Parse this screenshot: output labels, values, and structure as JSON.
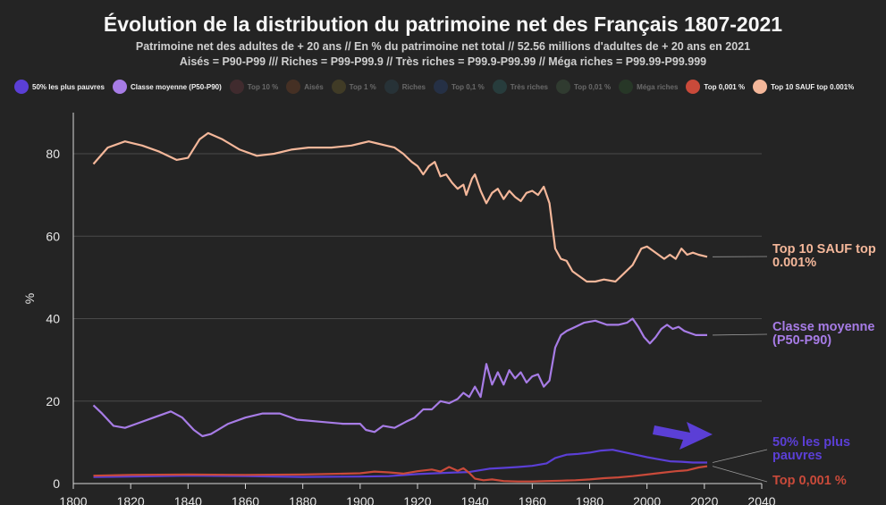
{
  "title": "Évolution de la distribution du patrimoine net des Français 1807-2021",
  "subtitle_1": "Patrimoine net des adultes de + 20 ans // En % du patrimoine net total // 52.56 millions d'adultes de + 20 ans en 2021",
  "subtitle_2": "Aisés = P90-P99 /// Riches = P99-P99.9 // Très riches = P99.9-P99.99 // Méga riches = P99.99-P99.999",
  "legend": [
    {
      "label": "50% les plus pauvres",
      "color": "#5b3fd6",
      "active": true
    },
    {
      "label": "Classe moyenne (P50-P90)",
      "color": "#a77ce6",
      "active": true
    },
    {
      "label": "Top 10 %",
      "color": "#7a3b45",
      "active": false
    },
    {
      "label": "Aisés",
      "color": "#8a4a25",
      "active": false
    },
    {
      "label": "Top 1 %",
      "color": "#7a6a2a",
      "active": false
    },
    {
      "label": "Riches",
      "color": "#2f4f5f",
      "active": false
    },
    {
      "label": "Top 0,1 %",
      "color": "#2a4a8a",
      "active": false
    },
    {
      "label": "Très riches",
      "color": "#2f6f6f",
      "active": false
    },
    {
      "label": "Top 0,01 %",
      "color": "#4a6a4a",
      "active": false
    },
    {
      "label": "Méga riches",
      "color": "#2f5f2f",
      "active": false
    },
    {
      "label": "Top 0,001 %",
      "color": "#c94a3a",
      "active": true
    },
    {
      "label": "Top 10 SAUF top 0.001%",
      "color": "#f4b79a",
      "active": true
    }
  ],
  "chart_data": {
    "type": "line",
    "ylabel": "%",
    "xlim": [
      1800,
      2040
    ],
    "ylim": [
      0,
      90
    ],
    "x_ticks": [
      "1800",
      "1820",
      "1840",
      "1860",
      "1880",
      "1900",
      "1920",
      "1940",
      "1960",
      "1980",
      "2000",
      "2020",
      "2040"
    ],
    "y_ticks": [
      "0",
      "20",
      "40",
      "60",
      "80"
    ],
    "grid": "horizontal",
    "series": [
      {
        "name": "Top 10 SAUF top 0.001%",
        "color": "#f4b79a",
        "end_label": [
          "Top 10 SAUF top",
          "0.001%"
        ],
        "points": [
          [
            1807,
            77.5
          ],
          [
            1812,
            81.5
          ],
          [
            1818,
            83
          ],
          [
            1824,
            82
          ],
          [
            1830,
            80.5
          ],
          [
            1836,
            78.5
          ],
          [
            1840,
            79
          ],
          [
            1844,
            83.5
          ],
          [
            1847,
            85
          ],
          [
            1852,
            83.5
          ],
          [
            1858,
            81
          ],
          [
            1864,
            79.5
          ],
          [
            1870,
            80
          ],
          [
            1876,
            81
          ],
          [
            1882,
            81.5
          ],
          [
            1890,
            81.5
          ],
          [
            1897,
            82
          ],
          [
            1900,
            82.5
          ],
          [
            1903,
            83
          ],
          [
            1906,
            82.5
          ],
          [
            1909,
            82
          ],
          [
            1912,
            81.5
          ],
          [
            1915,
            80
          ],
          [
            1918,
            78
          ],
          [
            1920,
            77
          ],
          [
            1922,
            75
          ],
          [
            1924,
            77
          ],
          [
            1926,
            78
          ],
          [
            1928,
            74.5
          ],
          [
            1930,
            75
          ],
          [
            1932,
            73
          ],
          [
            1934,
            71.5
          ],
          [
            1936,
            72.5
          ],
          [
            1937,
            70
          ],
          [
            1939,
            74
          ],
          [
            1940,
            75
          ],
          [
            1942,
            71
          ],
          [
            1944,
            68
          ],
          [
            1946,
            70.5
          ],
          [
            1948,
            71.5
          ],
          [
            1950,
            69
          ],
          [
            1952,
            71
          ],
          [
            1954,
            69.5
          ],
          [
            1956,
            68.5
          ],
          [
            1958,
            70.5
          ],
          [
            1960,
            71
          ],
          [
            1962,
            70
          ],
          [
            1964,
            72
          ],
          [
            1966,
            68
          ],
          [
            1968,
            57
          ],
          [
            1970,
            54.5
          ],
          [
            1972,
            54
          ],
          [
            1974,
            51.5
          ],
          [
            1976,
            50.5
          ],
          [
            1979,
            49
          ],
          [
            1982,
            49
          ],
          [
            1985,
            49.5
          ],
          [
            1989,
            49
          ],
          [
            1992,
            51
          ],
          [
            1995,
            53
          ],
          [
            1998,
            57
          ],
          [
            2000,
            57.5
          ],
          [
            2002,
            56.5
          ],
          [
            2004,
            55.5
          ],
          [
            2006,
            54.5
          ],
          [
            2008,
            55.5
          ],
          [
            2010,
            54.5
          ],
          [
            2012,
            57
          ],
          [
            2014,
            55.5
          ],
          [
            2016,
            56
          ],
          [
            2018,
            55.5
          ],
          [
            2021,
            55
          ]
        ]
      },
      {
        "name": "Classe moyenne (P50-P90)",
        "color": "#a77ce6",
        "end_label": [
          "Classe moyenne",
          "(P50-P90)"
        ],
        "points": [
          [
            1807,
            19
          ],
          [
            1810,
            17
          ],
          [
            1814,
            14
          ],
          [
            1818,
            13.5
          ],
          [
            1822,
            14.5
          ],
          [
            1828,
            16
          ],
          [
            1834,
            17.5
          ],
          [
            1838,
            16
          ],
          [
            1842,
            13
          ],
          [
            1845,
            11.5
          ],
          [
            1848,
            12
          ],
          [
            1854,
            14.5
          ],
          [
            1860,
            16
          ],
          [
            1866,
            17
          ],
          [
            1872,
            17
          ],
          [
            1878,
            15.5
          ],
          [
            1886,
            15
          ],
          [
            1894,
            14.5
          ],
          [
            1900,
            14.5
          ],
          [
            1902,
            13
          ],
          [
            1905,
            12.5
          ],
          [
            1908,
            14
          ],
          [
            1912,
            13.5
          ],
          [
            1916,
            15
          ],
          [
            1919,
            16
          ],
          [
            1922,
            18
          ],
          [
            1925,
            18
          ],
          [
            1928,
            20
          ],
          [
            1931,
            19.5
          ],
          [
            1934,
            20.5
          ],
          [
            1936,
            22
          ],
          [
            1938,
            21
          ],
          [
            1940,
            23.5
          ],
          [
            1942,
            21
          ],
          [
            1944,
            29
          ],
          [
            1946,
            24
          ],
          [
            1948,
            27
          ],
          [
            1950,
            24
          ],
          [
            1952,
            27.5
          ],
          [
            1954,
            25.5
          ],
          [
            1956,
            27
          ],
          [
            1958,
            24.5
          ],
          [
            1960,
            26
          ],
          [
            1962,
            26.5
          ],
          [
            1964,
            23.5
          ],
          [
            1966,
            25
          ],
          [
            1968,
            33
          ],
          [
            1970,
            36
          ],
          [
            1972,
            37
          ],
          [
            1975,
            38
          ],
          [
            1978,
            39
          ],
          [
            1982,
            39.5
          ],
          [
            1986,
            38.5
          ],
          [
            1990,
            38.5
          ],
          [
            1993,
            39
          ],
          [
            1995,
            40
          ],
          [
            1997,
            38
          ],
          [
            1999,
            35.5
          ],
          [
            2001,
            34
          ],
          [
            2003,
            35.5
          ],
          [
            2005,
            37.5
          ],
          [
            2007,
            38.5
          ],
          [
            2009,
            37.5
          ],
          [
            2011,
            38
          ],
          [
            2013,
            37
          ],
          [
            2015,
            36.5
          ],
          [
            2017,
            36
          ],
          [
            2019,
            36
          ],
          [
            2021,
            36
          ]
        ]
      },
      {
        "name": "50% les plus pauvres",
        "color": "#5b3fd6",
        "end_label": [
          "50% les plus",
          "pauvres"
        ],
        "points": [
          [
            1807,
            1.6
          ],
          [
            1820,
            1.7
          ],
          [
            1840,
            1.9
          ],
          [
            1860,
            1.8
          ],
          [
            1880,
            1.6
          ],
          [
            1900,
            1.7
          ],
          [
            1910,
            1.8
          ],
          [
            1920,
            2.3
          ],
          [
            1930,
            2.6
          ],
          [
            1938,
            2.8
          ],
          [
            1945,
            3.6
          ],
          [
            1950,
            3.8
          ],
          [
            1955,
            4.0
          ],
          [
            1960,
            4.3
          ],
          [
            1965,
            4.9
          ],
          [
            1968,
            6.2
          ],
          [
            1972,
            7.0
          ],
          [
            1976,
            7.2
          ],
          [
            1980,
            7.5
          ],
          [
            1984,
            8.0
          ],
          [
            1988,
            8.2
          ],
          [
            1992,
            7.6
          ],
          [
            1996,
            7.0
          ],
          [
            2000,
            6.4
          ],
          [
            2004,
            5.9
          ],
          [
            2008,
            5.4
          ],
          [
            2012,
            5.3
          ],
          [
            2016,
            5.1
          ],
          [
            2021,
            5.1
          ]
        ]
      },
      {
        "name": "Top 0,001 %",
        "color": "#c94a3a",
        "end_label": [
          "Top 0,001 %"
        ],
        "points": [
          [
            1807,
            1.9
          ],
          [
            1820,
            2.1
          ],
          [
            1840,
            2.2
          ],
          [
            1860,
            2.1
          ],
          [
            1880,
            2.2
          ],
          [
            1900,
            2.5
          ],
          [
            1905,
            2.9
          ],
          [
            1910,
            2.7
          ],
          [
            1915,
            2.4
          ],
          [
            1920,
            3.0
          ],
          [
            1925,
            3.4
          ],
          [
            1928,
            2.9
          ],
          [
            1931,
            4.0
          ],
          [
            1934,
            3.1
          ],
          [
            1936,
            3.7
          ],
          [
            1938,
            2.6
          ],
          [
            1940,
            1.2
          ],
          [
            1943,
            0.8
          ],
          [
            1946,
            1.0
          ],
          [
            1950,
            0.6
          ],
          [
            1955,
            0.5
          ],
          [
            1960,
            0.5
          ],
          [
            1965,
            0.6
          ],
          [
            1970,
            0.7
          ],
          [
            1975,
            0.8
          ],
          [
            1980,
            1.0
          ],
          [
            1985,
            1.3
          ],
          [
            1990,
            1.5
          ],
          [
            1995,
            1.8
          ],
          [
            2000,
            2.2
          ],
          [
            2005,
            2.6
          ],
          [
            2010,
            3.0
          ],
          [
            2014,
            3.2
          ],
          [
            2018,
            3.9
          ],
          [
            2021,
            4.2
          ]
        ]
      }
    ],
    "annotations": [
      {
        "type": "arrow",
        "color": "#5b3fd6",
        "description": "pointer arrow toward 50% les plus pauvres"
      }
    ]
  }
}
